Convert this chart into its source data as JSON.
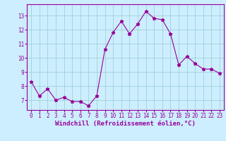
{
  "x": [
    0,
    1,
    2,
    3,
    4,
    5,
    6,
    7,
    8,
    9,
    10,
    11,
    12,
    13,
    14,
    15,
    16,
    17,
    18,
    19,
    20,
    21,
    22,
    23
  ],
  "y": [
    8.3,
    7.3,
    7.8,
    7.0,
    7.2,
    6.9,
    6.9,
    6.6,
    7.3,
    10.6,
    11.8,
    12.6,
    11.7,
    12.4,
    13.3,
    12.8,
    12.7,
    11.7,
    9.5,
    10.1,
    9.6,
    9.2,
    9.2,
    8.9
  ],
  "line_color": "#990099",
  "marker": "*",
  "marker_size": 3.5,
  "bg_color": "#cceeff",
  "grid_color": "#99cccc",
  "xlabel": "Windchill (Refroidissement éolien,°C)",
  "text_color": "#990099",
  "xlim": [
    -0.5,
    23.5
  ],
  "ylim": [
    6.3,
    13.8
  ],
  "yticks": [
    7,
    8,
    9,
    10,
    11,
    12,
    13
  ],
  "xticks": [
    0,
    1,
    2,
    3,
    4,
    5,
    6,
    7,
    8,
    9,
    10,
    11,
    12,
    13,
    14,
    15,
    16,
    17,
    18,
    19,
    20,
    21,
    22,
    23
  ],
  "tick_fontsize": 5.5,
  "xlabel_fontsize": 6.5
}
